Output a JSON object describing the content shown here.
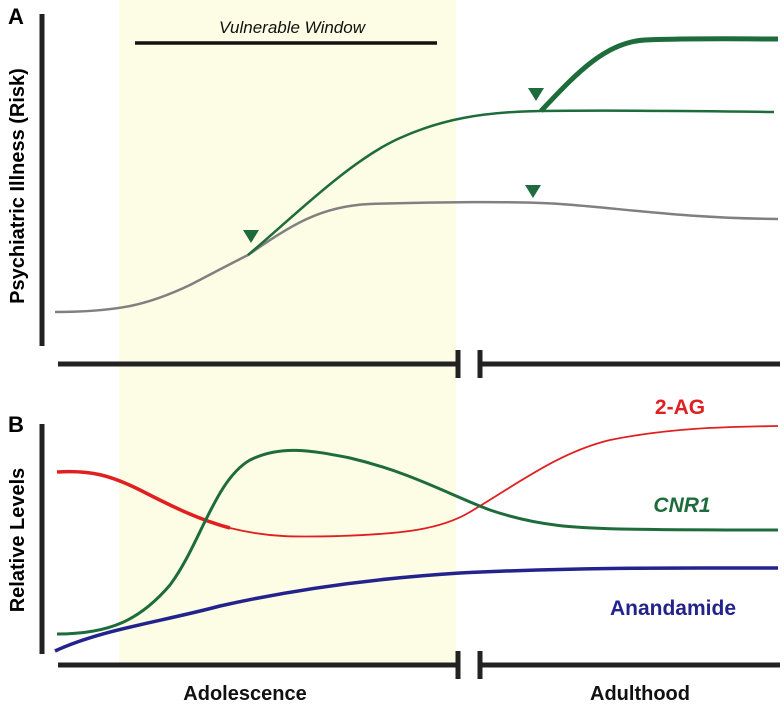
{
  "panel_a": {
    "letter": "A",
    "y_axis_label": "Psychiatric Illness (Risk)",
    "window_label": "Vulnerable Window",
    "curves": [
      {
        "name": "baseline-risk",
        "color": "#808080"
      },
      {
        "name": "elevated-risk",
        "color": "#1e6b3c"
      },
      {
        "name": "maximum-risk",
        "color": "#1e6b3c"
      }
    ],
    "marker_color": "#1e6b3c"
  },
  "panel_b": {
    "letter": "B",
    "y_axis_label": "Relative Levels",
    "series": [
      {
        "name": "2-AG",
        "label": "2-AG",
        "color": "#e02020",
        "italic": false
      },
      {
        "name": "CNR1",
        "label": "CNR1",
        "color": "#1e6b3c",
        "italic": true
      },
      {
        "name": "Anandamide",
        "label": "Anandamide",
        "color": "#23238e",
        "italic": false
      }
    ]
  },
  "x_axis": {
    "phases": [
      "Adolescence",
      "Adulthood"
    ]
  },
  "colors": {
    "window_fill": "#fdfce4",
    "axis": "#222222"
  }
}
